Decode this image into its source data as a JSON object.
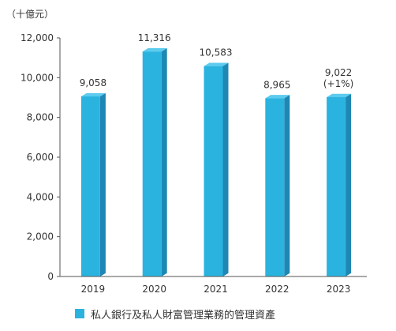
{
  "chart_data": {
    "type": "bar",
    "unit": "（十億元）",
    "categories": [
      "2019",
      "2020",
      "2021",
      "2022",
      "2023"
    ],
    "series": [
      {
        "name": "私人銀行及私人財富管理業務的管理資產",
        "values": [
          9058,
          11316,
          10583,
          8965,
          9022
        ],
        "labels": [
          "9,058",
          "11,316",
          "10,583",
          "8,965",
          "9,022"
        ]
      }
    ],
    "annotations": [
      {
        "category": "2023",
        "text": "(+1%)"
      }
    ],
    "yticks": [
      "0",
      "2,000",
      "4,000",
      "6,000",
      "8,000",
      "10,000",
      "12,000"
    ],
    "ylim": [
      0,
      12000
    ],
    "grid": false,
    "legend": "bottom-left",
    "colors": {
      "bar_front": "#2bb3e0",
      "bar_side": "#1e87b3",
      "bar_top": "#5ccbee",
      "axis": "#555555"
    }
  }
}
